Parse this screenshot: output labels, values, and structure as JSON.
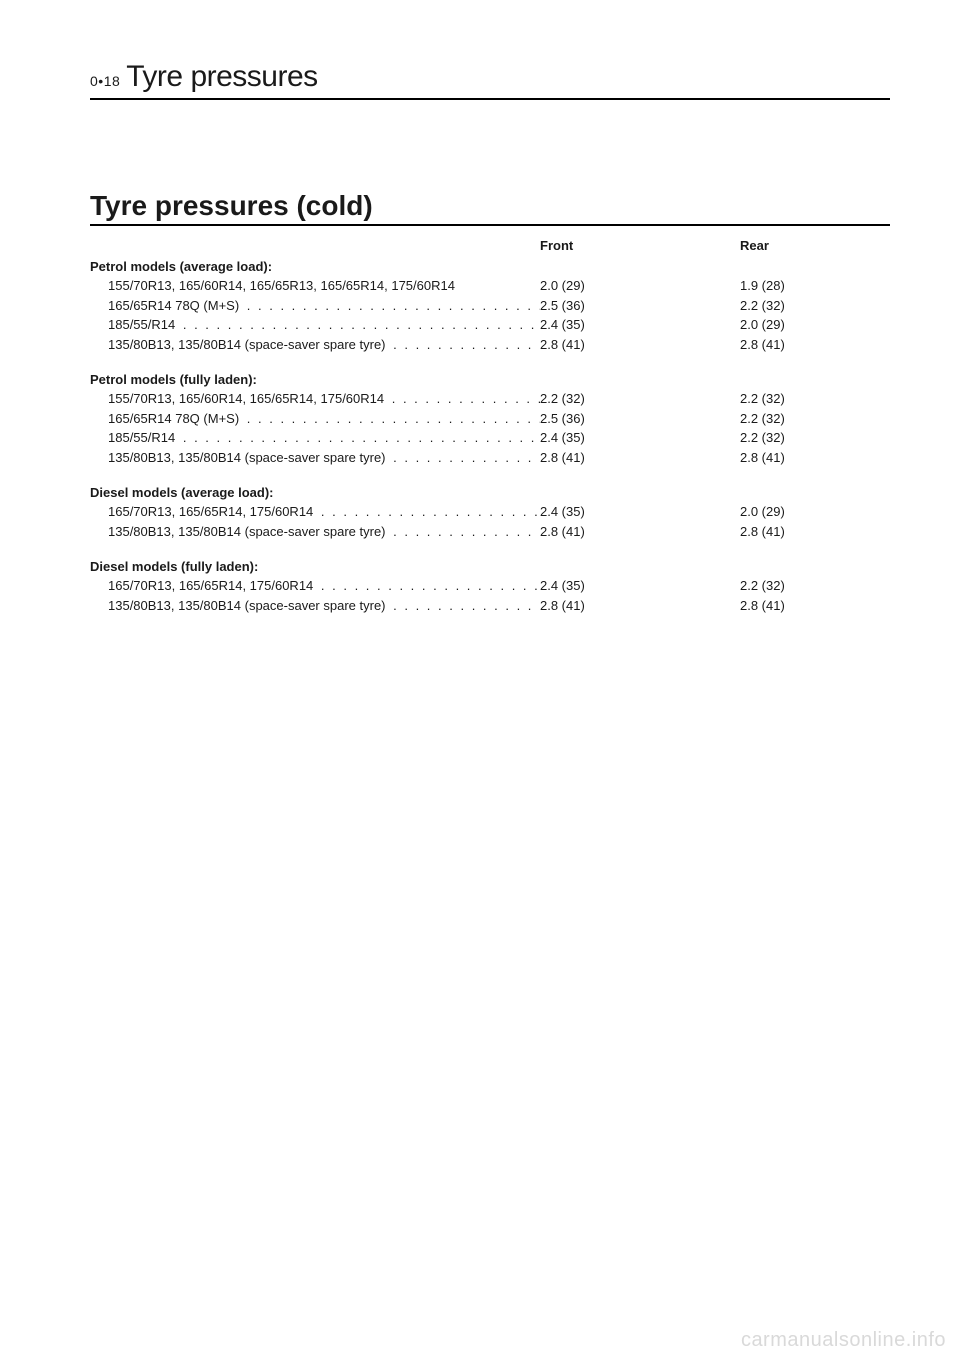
{
  "page_number_prefix": "0•18",
  "running_title": "Tyre pressures",
  "section_title": "Tyre pressures (cold)",
  "column_headers": {
    "front": "Front",
    "rear": "Rear"
  },
  "groups": [
    {
      "title": "Petrol models (average load):",
      "rows": [
        {
          "label": "155/70R13, 165/60R14, 165/65R13, 165/65R14, 175/60R14",
          "dots": false,
          "front": "2.0 (29)",
          "rear": "1.9 (28)"
        },
        {
          "label": "165/65R14 78Q (M+S)",
          "dots": true,
          "front": "2.5 (36)",
          "rear": "2.2 (32)"
        },
        {
          "label": "185/55/R14",
          "dots": true,
          "front": "2.4 (35)",
          "rear": "2.0 (29)"
        },
        {
          "label": "135/80B13, 135/80B14 (space-saver spare tyre)",
          "dots": true,
          "front": "2.8 (41)",
          "rear": "2.8 (41)"
        }
      ]
    },
    {
      "title": "Petrol models (fully laden):",
      "rows": [
        {
          "label": "155/70R13, 165/60R14, 165/65R14, 175/60R14",
          "dots": true,
          "front": "2.2 (32)",
          "rear": "2.2 (32)"
        },
        {
          "label": "165/65R14 78Q (M+S)",
          "dots": true,
          "front": "2.5 (36)",
          "rear": "2.2 (32)"
        },
        {
          "label": "185/55/R14",
          "dots": true,
          "front": "2.4 (35)",
          "rear": "2.2 (32)"
        },
        {
          "label": "135/80B13, 135/80B14 (space-saver spare tyre)",
          "dots": true,
          "front": "2.8 (41)",
          "rear": "2.8 (41)"
        }
      ]
    },
    {
      "title": "Diesel models (average load):",
      "rows": [
        {
          "label": "165/70R13, 165/65R14, 175/60R14",
          "dots": true,
          "front": "2.4 (35)",
          "rear": "2.0 (29)"
        },
        {
          "label": "135/80B13, 135/80B14 (space-saver spare tyre)",
          "dots": true,
          "front": "2.8 (41)",
          "rear": "2.8 (41)"
        }
      ]
    },
    {
      "title": "Diesel models (fully laden):",
      "rows": [
        {
          "label": "165/70R13, 165/65R14, 175/60R14",
          "dots": true,
          "front": "2.4 (35)",
          "rear": "2.2 (32)"
        },
        {
          "label": "135/80B13, 135/80B14 (space-saver spare tyre)",
          "dots": true,
          "front": "2.8 (41)",
          "rear": "2.8 (41)"
        }
      ]
    }
  ],
  "watermark": "carmanualsonline.info",
  "colors": {
    "text": "#1a1a1a",
    "background": "#ffffff",
    "rule": "#000000",
    "watermark": "#d9d9d9"
  },
  "fonts": {
    "body_size_pt": 10,
    "running_title_size_pt": 22,
    "section_title_size_pt": 21,
    "weight_bold": 700,
    "weight_normal": 400
  },
  "dot_leader": " . . . . . . . . . . . . . . . . . . . . . . . . . . . . . . . . . . . . . . . ."
}
